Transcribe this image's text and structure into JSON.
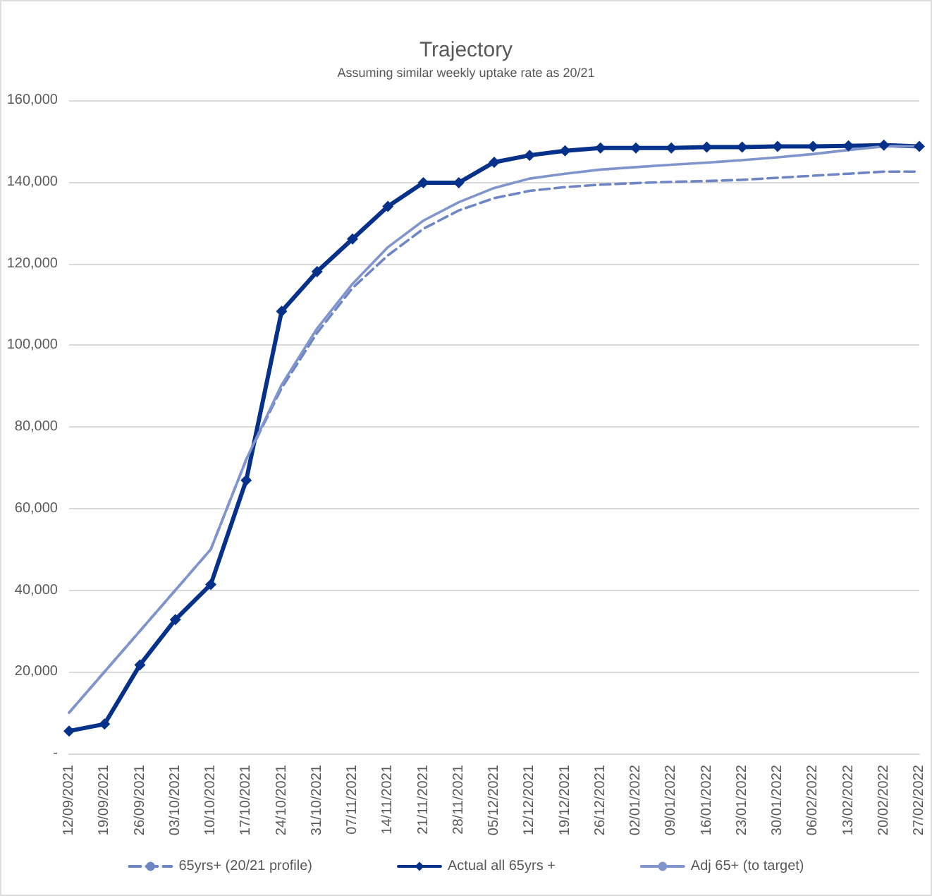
{
  "chart_data": {
    "type": "line",
    "title": "Trajectory",
    "subtitle": "Assuming similar weekly uptake rate as 20/21",
    "categories": [
      "12/09/2021",
      "19/09/2021",
      "26/09/2021",
      "03/10/2021",
      "10/10/2021",
      "17/10/2021",
      "24/10/2021",
      "31/10/2021",
      "07/11/2021",
      "14/11/2021",
      "21/11/2021",
      "28/11/2021",
      "05/12/2021",
      "12/12/2021",
      "19/12/2021",
      "26/12/2021",
      "02/01/2022",
      "09/01/2022",
      "16/01/2022",
      "23/01/2022",
      "30/01/2022",
      "06/02/2022",
      "13/02/2022",
      "20/02/2022",
      "27/02/2022"
    ],
    "series": [
      {
        "name": "65yrs+ (20/21 profile)",
        "color": "#6f86c4",
        "line_style": "dashed",
        "marker": "none",
        "values": [
          10000,
          20000,
          30000,
          40000,
          50000,
          72000,
          89500,
          103000,
          114000,
          122000,
          128500,
          133000,
          136000,
          137800,
          138700,
          139300,
          139700,
          140000,
          140200,
          140500,
          141000,
          141500,
          142000,
          142500,
          142500
        ]
      },
      {
        "name": "Actual all 65yrs +",
        "color": "#06318a",
        "line_style": "solid",
        "marker": "diamond",
        "values": [
          5500,
          7200,
          21700,
          32800,
          41400,
          66900,
          108300,
          118000,
          126000,
          134000,
          139800,
          139800,
          144800,
          146500,
          147600,
          148300,
          148300,
          148300,
          148500,
          148500,
          148700,
          148700,
          148800,
          149000,
          148700
        ]
      },
      {
        "name": "Adj 65+ (to target)",
        "color": "#8095cc",
        "line_style": "solid",
        "marker": "none",
        "values": [
          10000,
          20000,
          30000,
          40000,
          50000,
          72000,
          90300,
          104100,
          115000,
          124000,
          130500,
          135000,
          138500,
          140800,
          142000,
          143000,
          143600,
          144200,
          144700,
          145300,
          146000,
          146800,
          147800,
          148700,
          148700
        ]
      }
    ],
    "ylim": [
      0,
      160000
    ],
    "yticks": [
      {
        "value": 0,
        "label": "-"
      },
      {
        "value": 20000,
        "label": "20,000"
      },
      {
        "value": 40000,
        "label": "40,000"
      },
      {
        "value": 60000,
        "label": "60,000"
      },
      {
        "value": 80000,
        "label": "80,000"
      },
      {
        "value": 100000,
        "label": "100,000"
      },
      {
        "value": 120000,
        "label": "120,000"
      },
      {
        "value": 140000,
        "label": "140,000"
      },
      {
        "value": 160000,
        "label": "160,000"
      }
    ],
    "grid": "y",
    "legend": "bottom"
  }
}
